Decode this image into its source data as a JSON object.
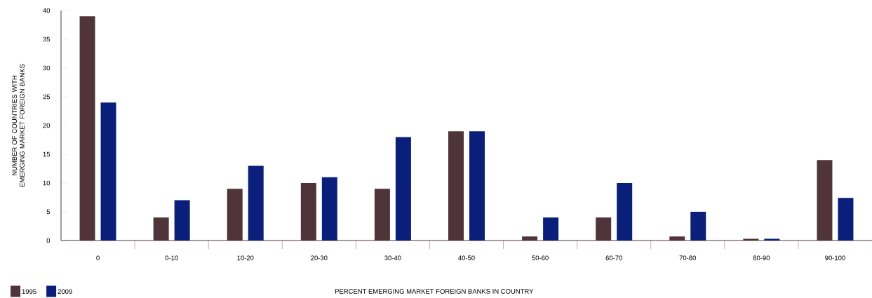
{
  "chart_data": {
    "type": "bar",
    "xlabel": "PERCENT EMERGING MARKET FOREIGN BANKS IN COUNTRY",
    "ylabel": "NUMBER OF COUNTRIES WITH EMERGING MARKET FOREIGN BANKS",
    "categories": [
      "0",
      "0-10",
      "10-20",
      "20-30",
      "30-40",
      "40-50",
      "50-60",
      "60-70",
      "70-80",
      "80-90",
      "90-100"
    ],
    "series": [
      {
        "name": "1995",
        "color": "#4f3439",
        "values": [
          39,
          4,
          9,
          10,
          9,
          19,
          0.7,
          4,
          0.7,
          0.3,
          14
        ]
      },
      {
        "name": "2009",
        "color": "#0a1f7a",
        "values": [
          24,
          7,
          13,
          11,
          18,
          19,
          4,
          10,
          5,
          0.3,
          7.4
        ]
      }
    ],
    "ylim": [
      0,
      40
    ],
    "yticks": [
      0,
      5,
      10,
      15,
      20,
      25,
      30,
      35,
      40
    ],
    "grid": false,
    "legend": "bottom left"
  }
}
